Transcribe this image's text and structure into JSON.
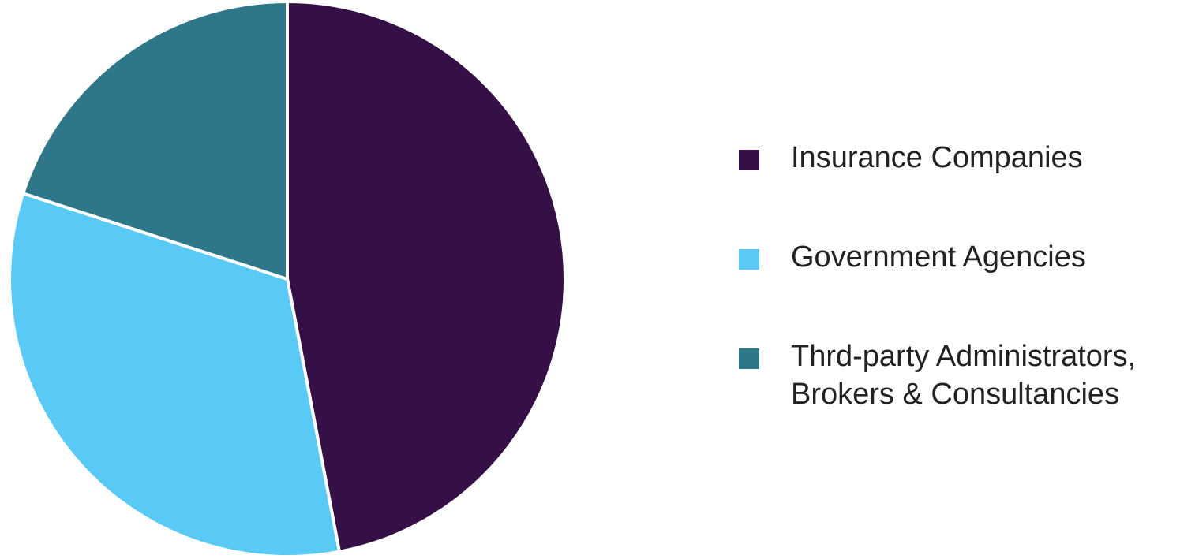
{
  "chart_data": {
    "type": "pie",
    "slices": [
      {
        "label": "Insurance Companies",
        "value": 47.0,
        "color": "#351047"
      },
      {
        "label": "Government Agencies",
        "value": 33.0,
        "color": "#59CAF5"
      },
      {
        "label": "Thrd-party Administrators,\nBrokers & Consultancies",
        "value": 20.0,
        "color": "#2E7788"
      }
    ],
    "legend": "right"
  }
}
